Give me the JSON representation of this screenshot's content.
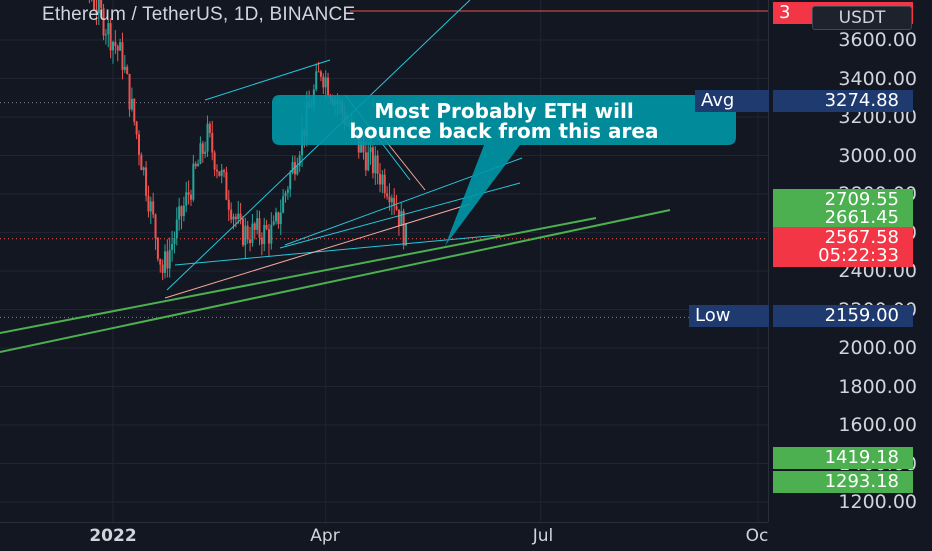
{
  "symbol_title": "Ethereum / TetherUS, 1D, BINANCE",
  "currency_label": "USDT",
  "price_axis": {
    "ticks": [
      "3600.00",
      "3400.00",
      "3200.00",
      "3000.00",
      "2800.00",
      "2600.00",
      "2400.00",
      "2200.00",
      "2000.00",
      "1800.00",
      "1600.00",
      "1400.00",
      "1200.00"
    ]
  },
  "time_axis": {
    "ticks": [
      {
        "label": "2022",
        "bold": true
      },
      {
        "label": "Apr",
        "bold": false
      },
      {
        "label": "Jul",
        "bold": false
      },
      {
        "label": "Oc",
        "bold": false
      }
    ]
  },
  "labels": {
    "avg_name": "Avg",
    "avg_value": "3274.88",
    "low_name": "Low",
    "low_value": "2159.00",
    "top_red": "3",
    "level_1": "2709.55",
    "level_2": "2661.45",
    "last_price": "2567.58",
    "countdown": "05:22:33",
    "level_low_1": "1419.18",
    "level_low_2": "1293.18"
  },
  "callout": {
    "line1": "Most Probably ETH will",
    "line2": "bounce back from this area"
  },
  "colors": {
    "background": "#131722",
    "up_candle": "#26a69a",
    "down_candle": "#ef5350",
    "trendline_green": "#4caf50",
    "trendline_cyan": "#26c6da",
    "callout_fill": "#0097a7"
  },
  "chart_data": {
    "type": "candlestick",
    "symbol": "Ethereum / TetherUS",
    "interval": "1D",
    "exchange": "BINANCE",
    "y_range": [
      1120,
      3800
    ],
    "x_range": [
      "2021-11-10",
      "2022-10-01"
    ],
    "last_price": 2567.58,
    "average": 3274.88,
    "low": 2159.0,
    "approx_closes": [
      {
        "date": "2021-12-01",
        "close": 4200
      },
      {
        "date": "2021-12-20",
        "close": 3900
      },
      {
        "date": "2022-01-05",
        "close": 3500
      },
      {
        "date": "2022-01-22",
        "close": 2400
      },
      {
        "date": "2022-02-10",
        "close": 3100
      },
      {
        "date": "2022-02-24",
        "close": 2600
      },
      {
        "date": "2022-03-10",
        "close": 2600
      },
      {
        "date": "2022-03-30",
        "close": 3450
      },
      {
        "date": "2022-04-15",
        "close": 3050
      },
      {
        "date": "2022-04-29",
        "close": 2820
      },
      {
        "date": "2022-05-05",
        "close": 2567.58
      }
    ]
  }
}
